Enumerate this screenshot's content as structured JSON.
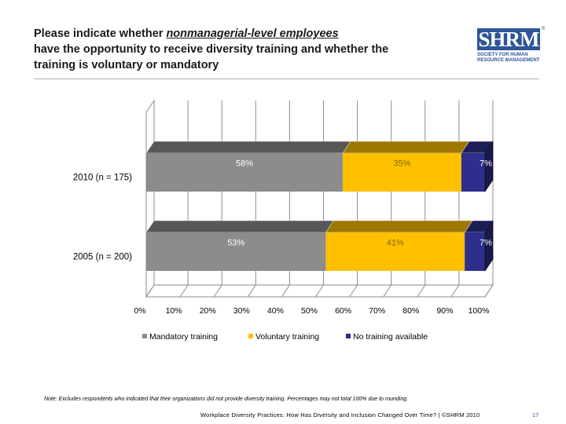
{
  "title": {
    "line1_prefix": "Please indicate whether ",
    "line1_emph": "nonmanagerial-level employees",
    "line2": "have the opportunity to receive diversity training and whether the",
    "line3": "training is voluntary or mandatory"
  },
  "logo": {
    "mark": "SHRM",
    "registered": "®",
    "line1": "SOCIETY FOR HUMAN",
    "line2": "RESOURCE MANAGEMENT"
  },
  "chart_data": {
    "type": "bar",
    "orientation": "horizontal",
    "stacked": true,
    "categories": [
      "2010 (n = 175)",
      "2005 (n = 200)"
    ],
    "series": [
      {
        "name": "Mandatory training",
        "values": [
          58,
          53
        ],
        "labels": [
          "58%",
          "53%"
        ],
        "color": "#8c8c8c"
      },
      {
        "name": "Voluntary training",
        "values": [
          35,
          41
        ],
        "labels": [
          "35%",
          "41%"
        ],
        "color": "#ffc000"
      },
      {
        "name": "No training available",
        "values": [
          7,
          7
        ],
        "labels": [
          "7%",
          "7%"
        ],
        "color": "#2e2e8c"
      }
    ],
    "xlim": [
      0,
      100
    ],
    "xticks": [
      "0%",
      "10%",
      "20%",
      "30%",
      "40%",
      "50%",
      "60%",
      "70%",
      "80%",
      "90%",
      "100%"
    ],
    "grid": true,
    "legend_position": "bottom"
  },
  "note": "Note: Excludes respondents who indicated that their organizations did not provide diversity training. Percentages may not total 100% due to rounding.",
  "footer": "Workplace Diversity Practices: How Has Diversity and Inclusion Changed Over Time? | ©SHRM 2010",
  "page_number": "17"
}
